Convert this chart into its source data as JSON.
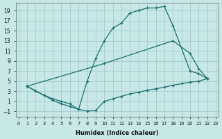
{
  "xlabel": "Humidex (Indice chaleur)",
  "bg_color": "#c8e8e8",
  "grid_color": "#a8cece",
  "line_color": "#1a6e6e",
  "xlim": [
    -0.3,
    23.3
  ],
  "ylim": [
    -2.0,
    20.5
  ],
  "xticks": [
    0,
    1,
    2,
    3,
    4,
    5,
    6,
    7,
    8,
    9,
    10,
    11,
    12,
    13,
    14,
    15,
    16,
    17,
    18,
    19,
    20,
    21,
    22,
    23
  ],
  "yticks": [
    -1,
    1,
    3,
    5,
    7,
    9,
    11,
    13,
    15,
    17,
    19
  ],
  "curve_top_x": [
    1,
    3,
    4,
    5,
    6,
    7,
    8,
    9,
    10,
    11,
    12,
    13,
    14,
    15,
    16,
    17,
    18,
    20,
    21,
    22
  ],
  "curve_top_y": [
    4.0,
    2.2,
    1.2,
    0.5,
    0.0,
    -0.6,
    5.0,
    9.5,
    13.0,
    15.5,
    16.5,
    18.5,
    19.0,
    19.5,
    19.5,
    19.8,
    16.0,
    7.0,
    6.5,
    5.5
  ],
  "curve_mid_x": [
    1,
    10,
    18,
    20,
    21,
    22
  ],
  "curve_mid_y": [
    4.0,
    8.5,
    13.0,
    10.5,
    7.5,
    5.5
  ],
  "curve_bot_x": [
    1,
    2,
    3,
    4,
    5,
    6,
    7,
    8,
    9,
    10,
    11,
    12,
    13,
    14,
    15,
    16,
    17,
    18,
    19,
    20,
    21,
    22
  ],
  "curve_bot_y": [
    4.0,
    3.0,
    2.2,
    1.5,
    1.0,
    0.5,
    -0.6,
    -0.9,
    -0.8,
    1.0,
    1.5,
    2.0,
    2.5,
    2.8,
    3.2,
    3.5,
    3.8,
    4.2,
    4.5,
    4.8,
    5.0,
    5.5
  ]
}
